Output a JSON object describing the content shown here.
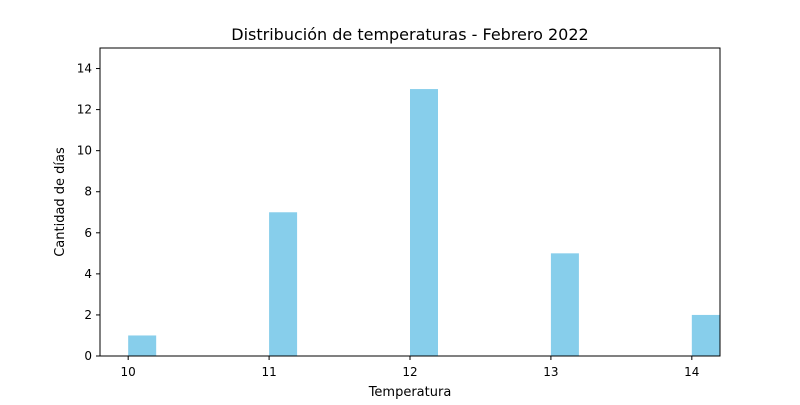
{
  "chart_data": {
    "type": "bar",
    "title": "Distribución de temperaturas - Febrero 2022",
    "xlabel": "Temperatura",
    "ylabel": "Cantidad de días",
    "x": [
      10,
      11,
      12,
      13,
      14
    ],
    "values": [
      1,
      7,
      13,
      5,
      2
    ],
    "xlim": [
      9.8,
      14.2
    ],
    "ylim": [
      0,
      15
    ],
    "xticks": [
      "10",
      "11",
      "12",
      "13",
      "14"
    ],
    "yticks": [
      "0",
      "2",
      "4",
      "6",
      "8",
      "10",
      "12",
      "14"
    ],
    "bar_color": "#87ceeb",
    "grid": false,
    "legend": "none"
  }
}
